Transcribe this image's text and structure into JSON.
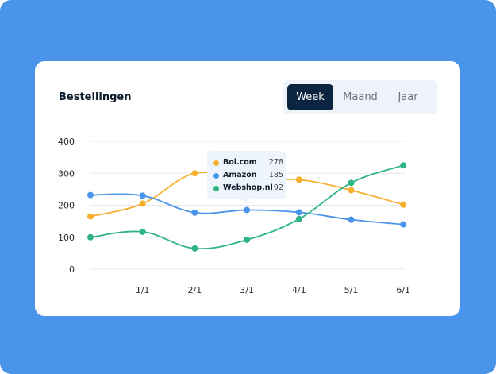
{
  "header": {
    "title": "Bestellingen"
  },
  "periods": [
    {
      "label": "Week",
      "active": true
    },
    {
      "label": "Maand",
      "active": false
    },
    {
      "label": "Jaar",
      "active": false
    }
  ],
  "tooltip": {
    "category": "3/1",
    "items": [
      {
        "name": "Bol.com",
        "value": "278",
        "color": "#f6b02e"
      },
      {
        "name": "Amazon",
        "value": "185",
        "color": "#4a94ec"
      },
      {
        "name": "Webshop.nl",
        "value": "92",
        "color": "#2fb583"
      }
    ]
  },
  "chart_data": {
    "type": "line",
    "title": "Bestellingen",
    "categories": [
      "",
      "1/1",
      "2/1",
      "3/1",
      "4/1",
      "5/1",
      "6/1"
    ],
    "ylim": [
      0,
      400
    ],
    "yticks": [
      "0",
      "100",
      "200",
      "300",
      "400"
    ],
    "grid": true,
    "series": [
      {
        "name": "Bol.com",
        "color": "#f6b02e",
        "values": [
          165,
          205,
          300,
          278,
          280,
          247,
          202
        ]
      },
      {
        "name": "Amazon",
        "color": "#4a94ec",
        "values": [
          232,
          230,
          177,
          185,
          178,
          155,
          140
        ]
      },
      {
        "name": "Webshop.nl",
        "color": "#2fb583",
        "values": [
          100,
          117,
          65,
          92,
          157,
          270,
          325
        ]
      }
    ]
  }
}
